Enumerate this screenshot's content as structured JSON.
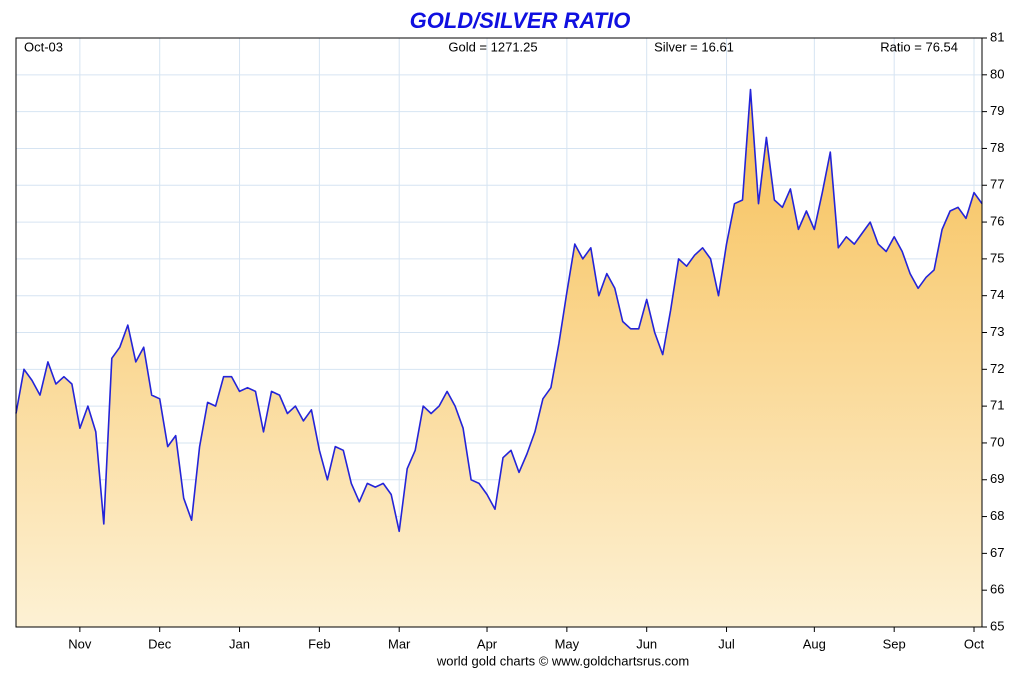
{
  "chart_data": {
    "type": "area",
    "title": "GOLD/SILVER RATIO",
    "annotations": [
      "Oct-03",
      "Gold = 1271.25",
      "Silver = 16.61",
      "Ratio = 76.54"
    ],
    "footer": "world gold charts © www.goldchartsrus.com",
    "series": [
      {
        "name": "Ratio",
        "color": "#2424d8",
        "fill_top": "#f7bf55",
        "fill_bottom": "#fdf1d4",
        "values": [
          70.8,
          72.0,
          71.7,
          71.3,
          72.2,
          71.6,
          71.8,
          71.6,
          70.4,
          71.0,
          70.3,
          67.8,
          72.3,
          72.6,
          73.2,
          72.2,
          72.6,
          71.3,
          71.2,
          69.9,
          70.2,
          68.5,
          67.9,
          69.9,
          71.1,
          71.0,
          71.8,
          71.8,
          71.4,
          71.5,
          71.4,
          70.3,
          71.4,
          71.3,
          70.8,
          71.0,
          70.6,
          70.9,
          69.8,
          69.0,
          69.9,
          69.8,
          68.9,
          68.4,
          68.9,
          68.8,
          68.9,
          68.6,
          67.6,
          69.3,
          69.8,
          71.0,
          70.8,
          71.0,
          71.4,
          71.0,
          70.4,
          69.0,
          68.9,
          68.6,
          68.2,
          69.6,
          69.8,
          69.2,
          69.7,
          70.3,
          71.2,
          71.5,
          72.7,
          74.1,
          75.4,
          75.0,
          75.3,
          74.0,
          74.6,
          74.2,
          73.3,
          73.1,
          73.1,
          73.9,
          73.0,
          72.4,
          73.6,
          75.0,
          74.8,
          75.1,
          75.3,
          75.0,
          74.0,
          75.4,
          76.5,
          76.6,
          79.6,
          76.5,
          78.3,
          76.6,
          76.4,
          76.9,
          75.8,
          76.3,
          75.8,
          76.8,
          77.9,
          75.3,
          75.6,
          75.4,
          75.7,
          76.0,
          75.4,
          75.2,
          75.6,
          75.2,
          74.6,
          74.2,
          74.5,
          74.7,
          75.8,
          76.3,
          76.4,
          76.1,
          76.8,
          76.5
        ]
      }
    ],
    "xlim": [
      0,
      121
    ],
    "xticks": [
      {
        "value": 8,
        "label": "Nov"
      },
      {
        "value": 18,
        "label": "Dec"
      },
      {
        "value": 28,
        "label": "Jan"
      },
      {
        "value": 38,
        "label": "Feb"
      },
      {
        "value": 48,
        "label": "Mar"
      },
      {
        "value": 59,
        "label": "Apr"
      },
      {
        "value": 69,
        "label": "May"
      },
      {
        "value": 79,
        "label": "Jun"
      },
      {
        "value": 89,
        "label": "Jul"
      },
      {
        "value": 100,
        "label": "Aug"
      },
      {
        "value": 110,
        "label": "Sep"
      },
      {
        "value": 120,
        "label": "Oct"
      }
    ],
    "ylim": [
      65,
      81
    ],
    "yticks": [
      65,
      66,
      67,
      68,
      69,
      70,
      71,
      72,
      73,
      74,
      75,
      76,
      77,
      78,
      79,
      80,
      81
    ],
    "y_axis_side": "right",
    "grid": true
  }
}
